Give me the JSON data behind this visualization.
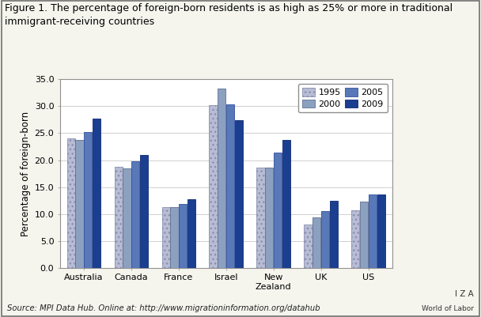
{
  "title": "Figure 1. The percentage of foreign-born residents is as high as 25% or more in traditional\nimmigrant-receiving countries",
  "ylabel": "Percentage of foreign-born",
  "source_text": "Source: MPI Data Hub. Online at: http://www.migrationinformation.org/datahub",
  "iza_line1": "I Z A",
  "iza_line2": "World of Labor",
  "categories": [
    "Australia",
    "Canada",
    "France",
    "Israel",
    "New\nZealand",
    "UK",
    "US"
  ],
  "cat_keys": [
    "Australia",
    "Canada",
    "France",
    "Israel",
    "New\nZealand",
    "UK",
    "US"
  ],
  "years": [
    "1995",
    "2000",
    "2005",
    "2009"
  ],
  "data": {
    "Australia": [
      24.0,
      23.8,
      25.2,
      27.7
    ],
    "Canada": [
      18.8,
      18.4,
      19.8,
      21.0
    ],
    "France": [
      11.2,
      11.2,
      11.9,
      12.8
    ],
    "Israel": [
      30.2,
      33.3,
      30.3,
      27.4
    ],
    "New\nZealand": [
      18.6,
      18.6,
      21.4,
      23.8
    ],
    "UK": [
      8.0,
      9.3,
      10.6,
      12.4
    ],
    "US": [
      10.7,
      12.3,
      13.6,
      13.6
    ]
  },
  "colors": {
    "1995": {
      "face": "#b8bcd4",
      "hatch": "...",
      "edge": "#8890b0"
    },
    "2000": {
      "face": "#8ca0c0",
      "hatch": "",
      "edge": "#607090"
    },
    "2005": {
      "face": "#5878b8",
      "hatch": "",
      "edge": "#3050a0"
    },
    "2009": {
      "face": "#1a3f90",
      "hatch": "",
      "edge": "#102870"
    }
  },
  "ylim": [
    0,
    35.0
  ],
  "yticks": [
    0.0,
    5.0,
    10.0,
    15.0,
    20.0,
    25.0,
    30.0,
    35.0
  ],
  "bar_width": 0.17,
  "background_color": "#f5f5ee",
  "plot_bg_color": "#ffffff",
  "border_color": "#909090",
  "grid_color": "#d0d0d0",
  "title_fontsize": 9.0,
  "axis_fontsize": 8.5,
  "tick_fontsize": 8.0,
  "legend_fontsize": 8.0
}
